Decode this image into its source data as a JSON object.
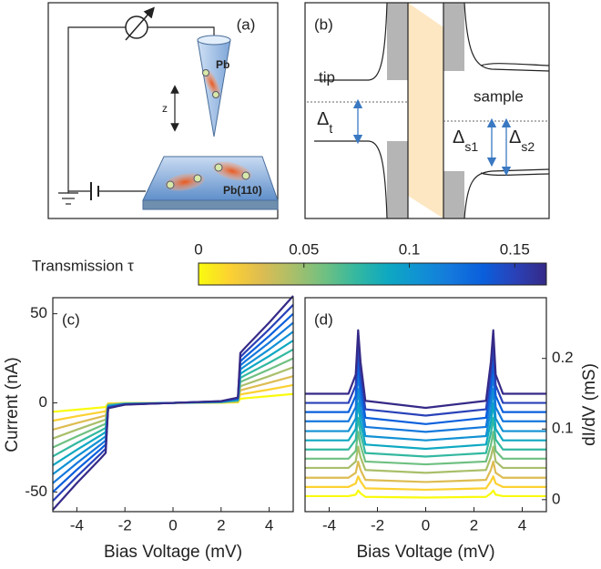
{
  "figure_a": {
    "label": "(a)",
    "tip": "Pb",
    "z": "z",
    "substrate": "Pb(110)"
  },
  "figure_b": {
    "label": "(b)",
    "tip": "tip",
    "sample": "sample",
    "gap_tip": {
      "symbol": "Δ",
      "subscript": "t"
    },
    "gap_s1": {
      "symbol": "Δ",
      "subscript": "s1"
    },
    "gap_s2": {
      "symbol": "Δ",
      "subscript": "s2"
    }
  },
  "colorbar": {
    "label": "Transmission τ",
    "lim": [
      0,
      0.165
    ],
    "ticks": [
      0,
      0.05,
      0.1,
      0.15
    ]
  },
  "chart_data": [
    {
      "type": "line",
      "panel_label": "(c)",
      "xlabel": "Bias Voltage (mV)",
      "ylabel": "Current (nA)",
      "x": [
        -5,
        -4,
        -3,
        -2.8,
        -2.7,
        -2,
        0,
        2,
        2.7,
        2.8,
        3,
        4,
        5
      ],
      "xlim": [
        -5,
        5
      ],
      "xticks": [
        -4,
        -2,
        0,
        2,
        4
      ],
      "ylim": [
        -61,
        59
      ],
      "yticks": [
        -50,
        0,
        50
      ],
      "series": [
        {
          "color": "#f9fb0e",
          "values": [
            -5,
            -3.8,
            -2.6,
            -2.3,
            -0.3,
            -0.1,
            0,
            0.1,
            0.3,
            2.3,
            2.6,
            3.8,
            5
          ]
        },
        {
          "color": "#fcd132",
          "values": [
            -10,
            -7.5,
            -5.2,
            -4.7,
            -0.5,
            -0.2,
            0,
            0.2,
            0.5,
            4.7,
            5.2,
            7.5,
            10
          ]
        },
        {
          "color": "#ddbc52",
          "values": [
            -15,
            -11.3,
            -7.8,
            -7,
            -0.8,
            -0.3,
            0,
            0.3,
            0.8,
            7,
            7.8,
            11.3,
            15
          ]
        },
        {
          "color": "#a9bf6a",
          "values": [
            -20,
            -15,
            -10.3,
            -9.3,
            -1,
            -0.3,
            0,
            0.3,
            1,
            9.3,
            10.3,
            15,
            20
          ]
        },
        {
          "color": "#6fc082",
          "values": [
            -25,
            -18.8,
            -12.9,
            -11.7,
            -1.3,
            -0.4,
            0,
            0.4,
            1.3,
            11.7,
            12.9,
            18.8,
            25
          ]
        },
        {
          "color": "#33b8a0",
          "values": [
            -30,
            -22.5,
            -15.5,
            -14,
            -1.5,
            -0.5,
            0,
            0.5,
            1.5,
            14,
            15.5,
            22.5,
            30
          ]
        },
        {
          "color": "#0ea8c2",
          "values": [
            -35,
            -26.3,
            -18.1,
            -16.3,
            -1.8,
            -0.6,
            0,
            0.6,
            1.8,
            16.3,
            18.1,
            26.3,
            35
          ]
        },
        {
          "color": "#1191d4",
          "values": [
            -40,
            -30,
            -20.7,
            -18.7,
            -2,
            -0.7,
            0,
            0.7,
            2,
            18.7,
            20.7,
            30,
            40
          ]
        },
        {
          "color": "#1478dc",
          "values": [
            -45,
            -33.8,
            -23.3,
            -21,
            -2.3,
            -0.8,
            0,
            0.8,
            2.3,
            21,
            23.3,
            33.8,
            45
          ]
        },
        {
          "color": "#0a5fdc",
          "values": [
            -50,
            -37.5,
            -25.8,
            -23.3,
            -2.5,
            -0.8,
            0,
            0.8,
            2.5,
            23.3,
            25.8,
            37.5,
            50
          ]
        },
        {
          "color": "#2a42b8",
          "values": [
            -55,
            -41.3,
            -28.4,
            -25.7,
            -2.8,
            -0.9,
            0,
            0.9,
            2.8,
            25.7,
            28.4,
            41.3,
            55
          ]
        },
        {
          "color": "#352a87",
          "values": [
            -60,
            -45,
            -31,
            -28,
            -3,
            -1,
            0,
            1,
            3,
            28,
            31,
            45,
            60
          ]
        }
      ]
    },
    {
      "type": "line",
      "panel_label": "(d)",
      "xlabel": "Bias Voltage (mV)",
      "y2label": "dI/dV (mS)",
      "x": [
        -5,
        -3.2,
        -2.9,
        -2.8,
        -2.7,
        -2.5,
        0,
        2.5,
        2.7,
        2.8,
        2.9,
        3.2,
        5
      ],
      "xlim": [
        -5,
        5
      ],
      "xticks": [
        -4,
        -2,
        0,
        2,
        4
      ],
      "y2lim": [
        -0.017,
        0.286
      ],
      "y2ticks": [
        0,
        0.1,
        0.2
      ],
      "series": [
        {
          "axis": "y2",
          "color": "#f9fb0e",
          "values": [
            0.005,
            0.005,
            0.007,
            0.013,
            0.009,
            0.004,
            0.003,
            0.004,
            0.009,
            0.013,
            0.007,
            0.005,
            0.005
          ]
        },
        {
          "axis": "y2",
          "color": "#fcd132",
          "values": [
            0.018,
            0.018,
            0.023,
            0.033,
            0.026,
            0.016,
            0.014,
            0.016,
            0.026,
            0.033,
            0.023,
            0.018,
            0.018
          ]
        },
        {
          "axis": "y2",
          "color": "#ddbc52",
          "values": [
            0.031,
            0.031,
            0.038,
            0.054,
            0.042,
            0.028,
            0.025,
            0.028,
            0.042,
            0.054,
            0.038,
            0.031,
            0.031
          ]
        },
        {
          "axis": "y2",
          "color": "#a9bf6a",
          "values": [
            0.045,
            0.045,
            0.054,
            0.075,
            0.06,
            0.042,
            0.038,
            0.042,
            0.06,
            0.075,
            0.054,
            0.045,
            0.045
          ]
        },
        {
          "axis": "y2",
          "color": "#6fc082",
          "values": [
            0.058,
            0.058,
            0.069,
            0.096,
            0.077,
            0.054,
            0.05,
            0.054,
            0.077,
            0.096,
            0.069,
            0.058,
            0.058
          ]
        },
        {
          "axis": "y2",
          "color": "#33b8a0",
          "values": [
            0.071,
            0.071,
            0.085,
            0.116,
            0.094,
            0.066,
            0.061,
            0.066,
            0.094,
            0.116,
            0.085,
            0.071,
            0.071
          ]
        },
        {
          "axis": "y2",
          "color": "#0ea8c2",
          "values": [
            0.084,
            0.084,
            0.1,
            0.137,
            0.11,
            0.078,
            0.072,
            0.078,
            0.11,
            0.137,
            0.1,
            0.084,
            0.084
          ]
        },
        {
          "axis": "y2",
          "color": "#1191d4",
          "values": [
            0.097,
            0.097,
            0.115,
            0.157,
            0.127,
            0.09,
            0.084,
            0.09,
            0.127,
            0.157,
            0.115,
            0.097,
            0.097
          ]
        },
        {
          "axis": "y2",
          "color": "#1478dc",
          "values": [
            0.111,
            0.111,
            0.131,
            0.179,
            0.145,
            0.103,
            0.096,
            0.103,
            0.145,
            0.179,
            0.131,
            0.111,
            0.111
          ]
        },
        {
          "axis": "y2",
          "color": "#0a5fdc",
          "values": [
            0.124,
            0.124,
            0.147,
            0.199,
            0.162,
            0.116,
            0.107,
            0.116,
            0.162,
            0.199,
            0.147,
            0.124,
            0.124
          ]
        },
        {
          "axis": "y2",
          "color": "#2a42b8",
          "values": [
            0.137,
            0.137,
            0.162,
            0.22,
            0.178,
            0.128,
            0.119,
            0.128,
            0.178,
            0.22,
            0.162,
            0.137,
            0.137
          ]
        },
        {
          "axis": "y2",
          "color": "#352a87",
          "values": [
            0.15,
            0.15,
            0.177,
            0.24,
            0.195,
            0.14,
            0.13,
            0.14,
            0.195,
            0.24,
            0.177,
            0.15,
            0.15
          ]
        }
      ]
    }
  ]
}
